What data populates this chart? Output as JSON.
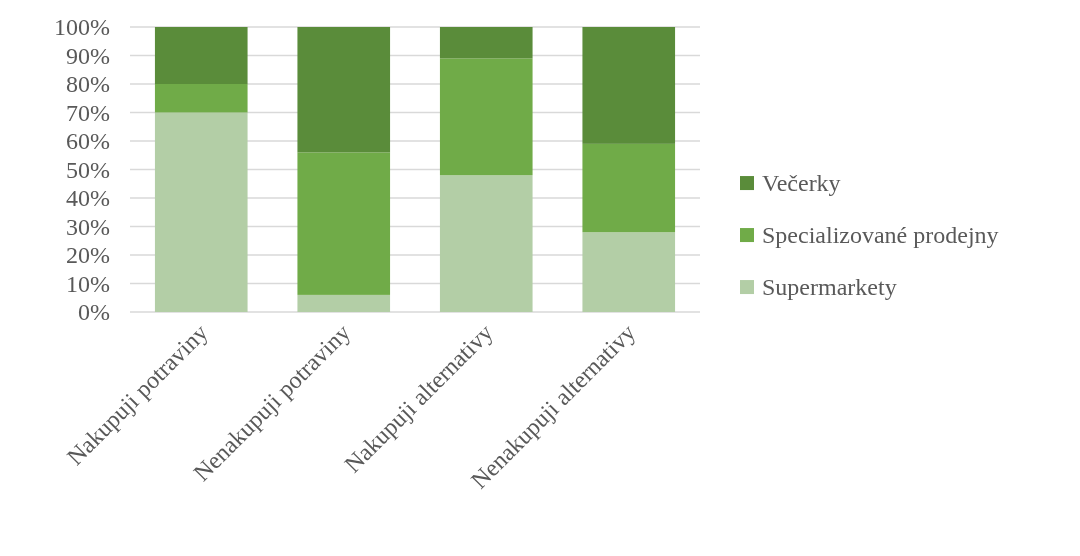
{
  "chart_data": {
    "type": "bar",
    "stacked": true,
    "categories": [
      "Nakupuji potraviny",
      "Nenakupuji potraviny",
      "Nakupuji alternativy",
      "Nenakupuji alternativy"
    ],
    "series": [
      {
        "name": "Supermarkety",
        "color": "#b3cea6",
        "values": [
          70,
          6,
          48,
          28
        ]
      },
      {
        "name": "Specializované prodejny",
        "color": "#70ab48",
        "values": [
          10,
          50,
          41,
          31
        ]
      },
      {
        "name": "Večerky",
        "color": "#5a8c3a",
        "values": [
          20,
          44,
          11,
          41
        ]
      }
    ],
    "ylim": [
      0,
      100
    ],
    "yticks": [
      {
        "value": 0,
        "label": "0%"
      },
      {
        "value": 10,
        "label": "10%"
      },
      {
        "value": 20,
        "label": "20%"
      },
      {
        "value": 30,
        "label": "30%"
      },
      {
        "value": 40,
        "label": "40%"
      },
      {
        "value": 50,
        "label": "50%"
      },
      {
        "value": 60,
        "label": "60%"
      },
      {
        "value": 70,
        "label": "70%"
      },
      {
        "value": 80,
        "label": "80%"
      },
      {
        "value": 90,
        "label": "90%"
      },
      {
        "value": 100,
        "label": "100%"
      }
    ],
    "grid": "y",
    "legend": "right"
  }
}
